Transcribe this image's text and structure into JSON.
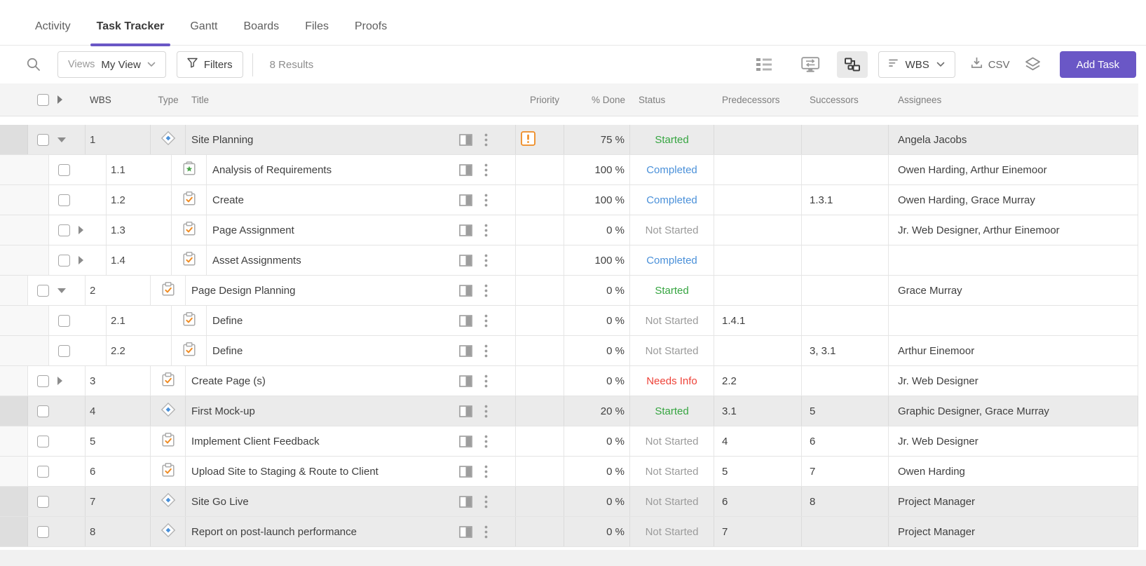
{
  "colors": {
    "accent_purple": "#6a57c6",
    "priority_orange": "#ef8b22",
    "status_green": "#36a541",
    "status_blue": "#4a90d9",
    "status_gray": "#9b9b9b",
    "status_red": "#ee4238",
    "shaded_row": "#ebebeb"
  },
  "tabs": [
    {
      "label": "Activity",
      "active": false
    },
    {
      "label": "Task Tracker",
      "active": true
    },
    {
      "label": "Gantt",
      "active": false
    },
    {
      "label": "Boards",
      "active": false
    },
    {
      "label": "Files",
      "active": false
    },
    {
      "label": "Proofs",
      "active": false
    }
  ],
  "toolbar": {
    "views_label": "Views",
    "view_value": "My View",
    "filters_label": "Filters",
    "results_text": "8 Results",
    "sort_field": "WBS",
    "export_label": "CSV",
    "add_task_label": "Add Task",
    "icons": [
      "table-view-icon",
      "screen-view-icon",
      "dependency-view-icon",
      "sort-icon",
      "download-icon",
      "layers-icon"
    ]
  },
  "table": {
    "headers": {
      "wbs": "WBS",
      "type": "Type",
      "title": "Title",
      "priority": "Priority",
      "done": "% Done",
      "status": "Status",
      "predecessors": "Predecessors",
      "successors": "Successors",
      "assignees": "Assignees"
    },
    "rows": [
      {
        "wbs": "1",
        "level": 0,
        "expand": "expanded",
        "type": "milestone",
        "title": "Site Planning",
        "priority": "high",
        "done": "75 %",
        "status": "Started",
        "status_color": "green",
        "predecessors": "",
        "successors": "",
        "assignees": "Angela Jacobs",
        "shaded": true
      },
      {
        "wbs": "1.1",
        "level": 1,
        "expand": "none",
        "type": "approval",
        "title": "Analysis of Requirements",
        "priority": "",
        "done": "100 %",
        "status": "Completed",
        "status_color": "blue",
        "predecessors": "",
        "successors": "",
        "assignees": "Owen Harding, Arthur Einemoor",
        "shaded": false
      },
      {
        "wbs": "1.2",
        "level": 1,
        "expand": "none",
        "type": "task",
        "title": "Create",
        "priority": "",
        "done": "100 %",
        "status": "Completed",
        "status_color": "blue",
        "predecessors": "",
        "successors": "1.3.1",
        "assignees": "Owen Harding, Grace Murray",
        "shaded": false
      },
      {
        "wbs": "1.3",
        "level": 1,
        "expand": "collapsed",
        "type": "task",
        "title": "Page Assignment",
        "priority": "",
        "done": "0 %",
        "status": "Not Started",
        "status_color": "gray",
        "predecessors": "",
        "successors": "",
        "assignees": "Jr. Web Designer, Arthur Einemoor",
        "shaded": false
      },
      {
        "wbs": "1.4",
        "level": 1,
        "expand": "collapsed",
        "type": "task",
        "title": "Asset Assignments",
        "priority": "",
        "done": "100 %",
        "status": "Completed",
        "status_color": "blue",
        "predecessors": "",
        "successors": "",
        "assignees": "",
        "shaded": false
      },
      {
        "wbs": "2",
        "level": 0,
        "expand": "expanded",
        "type": "task",
        "title": "Page Design Planning",
        "priority": "",
        "done": "0 %",
        "status": "Started",
        "status_color": "green",
        "predecessors": "",
        "successors": "",
        "assignees": "Grace Murray",
        "shaded": false
      },
      {
        "wbs": "2.1",
        "level": 1,
        "expand": "none",
        "type": "task",
        "title": "Define",
        "priority": "",
        "done": "0 %",
        "status": "Not Started",
        "status_color": "gray",
        "predecessors": "1.4.1",
        "successors": "",
        "assignees": "",
        "shaded": false
      },
      {
        "wbs": "2.2",
        "level": 1,
        "expand": "none",
        "type": "task",
        "title": "Define",
        "priority": "",
        "done": "0 %",
        "status": "Not Started",
        "status_color": "gray",
        "predecessors": "",
        "successors": "3, 3.1",
        "assignees": "Arthur Einemoor",
        "shaded": false
      },
      {
        "wbs": "3",
        "level": 0,
        "expand": "collapsed",
        "type": "task",
        "title": "Create Page (s)",
        "priority": "",
        "done": "0 %",
        "status": "Needs Info",
        "status_color": "red",
        "predecessors": "2.2",
        "successors": "",
        "assignees": "Jr. Web Designer",
        "shaded": false
      },
      {
        "wbs": "4",
        "level": 0,
        "expand": "none",
        "type": "milestone",
        "title": "First Mock-up",
        "priority": "",
        "done": "20 %",
        "status": "Started",
        "status_color": "green",
        "predecessors": "3.1",
        "successors": "5",
        "assignees": "Graphic Designer, Grace Murray",
        "shaded": true
      },
      {
        "wbs": "5",
        "level": 0,
        "expand": "none",
        "type": "task",
        "title": "Implement Client Feedback",
        "priority": "",
        "done": "0 %",
        "status": "Not Started",
        "status_color": "gray",
        "predecessors": "4",
        "successors": "6",
        "assignees": "Jr. Web Designer",
        "shaded": false
      },
      {
        "wbs": "6",
        "level": 0,
        "expand": "none",
        "type": "task",
        "title": "Upload Site to Staging & Route to Client",
        "priority": "",
        "done": "0 %",
        "status": "Not Started",
        "status_color": "gray",
        "predecessors": "5",
        "successors": "7",
        "assignees": "Owen Harding",
        "shaded": false
      },
      {
        "wbs": "7",
        "level": 0,
        "expand": "none",
        "type": "milestone",
        "title": "Site Go Live",
        "priority": "",
        "done": "0 %",
        "status": "Not Started",
        "status_color": "gray",
        "predecessors": "6",
        "successors": "8",
        "assignees": "Project Manager",
        "shaded": true
      },
      {
        "wbs": "8",
        "level": 0,
        "expand": "none",
        "type": "milestone",
        "title": "Report on post-launch performance",
        "priority": "",
        "done": "0 %",
        "status": "Not Started",
        "status_color": "gray",
        "predecessors": "7",
        "successors": "",
        "assignees": "Project Manager",
        "shaded": true
      }
    ]
  }
}
